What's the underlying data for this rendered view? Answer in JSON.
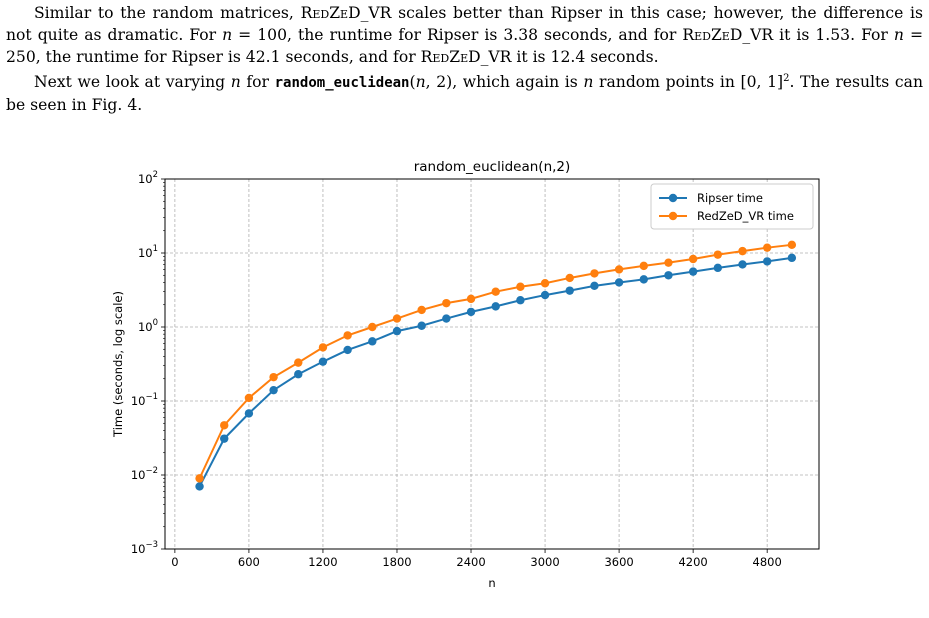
{
  "text": {
    "p1": "Similar to the random matrices, REDZED_VR scales better than Ripser in this case; however, the difference is not quite as dramatic. For n = 100, the runtime for Ripser is 3.38 seconds, and for REDZED_VR it is 1.53. For n = 250, the runtime for Ripser is 42.1 seconds, and for REDZED_VR it is 12.4 seconds.",
    "p2": "Next we look at varying n for random_euclidean(n, 2), which again is n random points in [0, 1]². The results can be seen in Fig. 4."
  },
  "chart_data": {
    "type": "line",
    "title": "random_euclidean(n,2)",
    "xlabel": "n",
    "ylabel": "Time (seconds, log scale)",
    "yscale": "log",
    "xlim": [
      -80,
      5220
    ],
    "ylim": [
      0.001,
      100
    ],
    "xticks": [
      0,
      600,
      1200,
      1800,
      2400,
      3000,
      3600,
      4200,
      4800
    ],
    "yticks": [
      {
        "value": 0.001,
        "base": "10",
        "exp": "−3"
      },
      {
        "value": 0.01,
        "base": "10",
        "exp": "−2"
      },
      {
        "value": 0.1,
        "base": "10",
        "exp": "−1"
      },
      {
        "value": 1,
        "base": "10",
        "exp": "0"
      },
      {
        "value": 10,
        "base": "10",
        "exp": "1"
      },
      {
        "value": 100,
        "base": "10",
        "exp": "2"
      }
    ],
    "grid": true,
    "legend_position": "top-right",
    "x": [
      200,
      400,
      600,
      800,
      1000,
      1200,
      1400,
      1600,
      1800,
      2000,
      2200,
      2400,
      2600,
      2800,
      3000,
      3200,
      3400,
      3600,
      3800,
      4000,
      4200,
      4400,
      4600,
      4800,
      5000
    ],
    "series": [
      {
        "name": "Ripser time",
        "color": "#1f77b4",
        "values": [
          0.007,
          0.031,
          0.068,
          0.14,
          0.23,
          0.34,
          0.49,
          0.64,
          0.88,
          1.04,
          1.3,
          1.6,
          1.9,
          2.3,
          2.7,
          3.1,
          3.6,
          4.0,
          4.4,
          5.0,
          5.6,
          6.3,
          7.0,
          7.7,
          8.6
        ]
      },
      {
        "name": "RedZeD_VR time",
        "color": "#ff7f0e",
        "values": [
          0.009,
          0.047,
          0.11,
          0.21,
          0.33,
          0.53,
          0.77,
          1.0,
          1.3,
          1.7,
          2.1,
          2.4,
          3.0,
          3.5,
          3.9,
          4.6,
          5.3,
          6.0,
          6.7,
          7.4,
          8.3,
          9.5,
          10.6,
          11.8,
          12.9
        ]
      }
    ]
  }
}
